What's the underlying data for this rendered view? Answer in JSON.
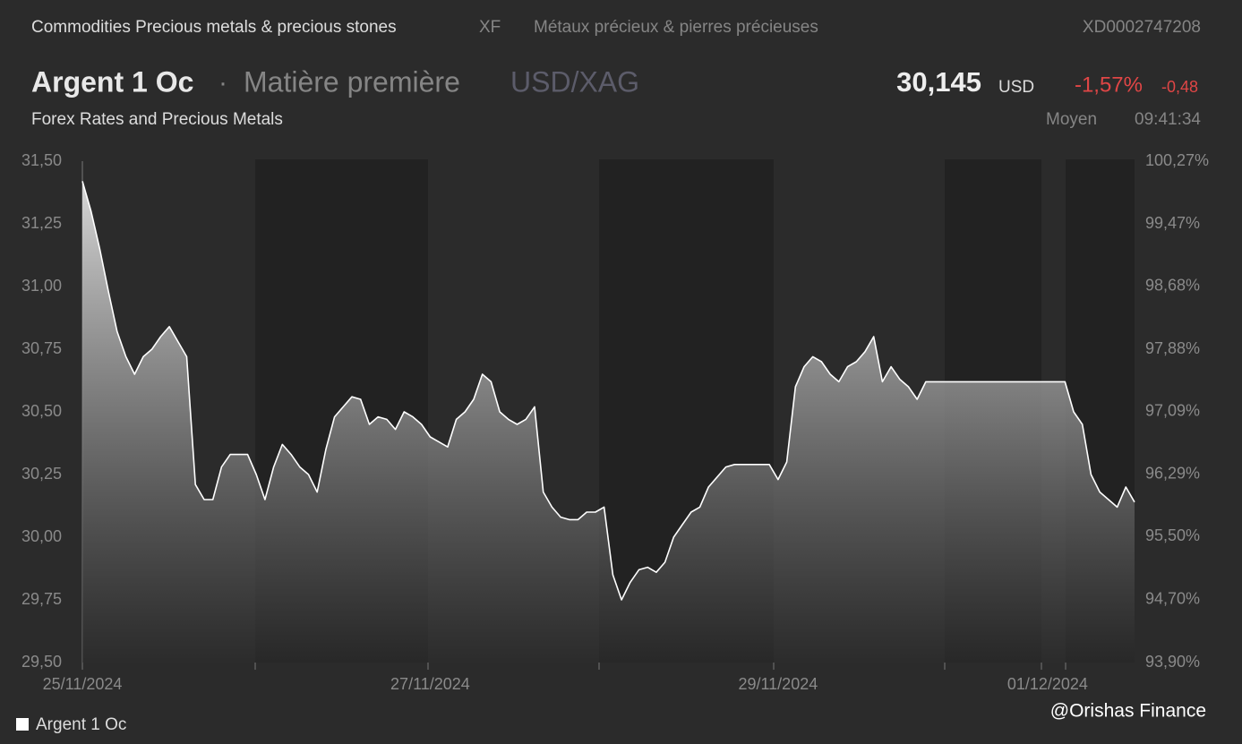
{
  "header": {
    "category": "Commodities Precious metals & precious stones",
    "code": "XF",
    "category_fr": "Métaux précieux & pierres précieuses",
    "isin": "XD0002747208",
    "name": "Argent 1 Oc",
    "separator": "·",
    "kind": "Matière première",
    "pair": "USD/XAG",
    "price": "30,145",
    "currency": "USD",
    "change_pct": "-1,57%",
    "change": "-0,48",
    "market": "Forex Rates and Precious Metals",
    "price_type": "Moyen",
    "time": "09:41:34"
  },
  "watermark": "@Orishas Finance",
  "chart_data": {
    "type": "area",
    "categories": [
      "25/11/2024",
      null,
      null,
      null,
      null,
      null,
      null,
      null,
      null,
      null,
      null,
      null,
      null,
      null,
      null,
      null,
      null,
      null,
      null,
      null,
      null,
      null,
      null,
      null,
      null,
      null,
      null,
      null,
      null,
      null,
      null,
      null,
      null,
      null,
      null,
      null,
      null,
      null,
      null,
      null,
      "27/11/2024",
      null,
      null,
      null,
      null,
      null,
      null,
      null,
      null,
      null,
      null,
      null,
      null,
      null,
      null,
      null,
      null,
      null,
      null,
      null,
      null,
      null,
      null,
      null,
      null,
      null,
      null,
      null,
      null,
      null,
      null,
      null,
      null,
      null,
      null,
      null,
      null,
      null,
      null,
      null,
      "29/11/2024",
      null,
      null,
      null,
      null,
      null,
      null,
      null,
      null,
      null,
      null,
      null,
      null,
      null,
      null,
      null,
      null,
      null,
      null,
      null,
      null,
      null,
      null,
      null,
      null,
      null,
      null,
      null,
      null,
      null,
      null,
      "01/12/2024",
      null,
      null,
      null,
      null,
      null,
      null,
      null,
      null,
      null,
      null
    ],
    "series": [
      {
        "name": "Argent 1 Oc",
        "color": "#ffffff",
        "values": [
          31.42,
          31.3,
          31.15,
          30.98,
          30.82,
          30.72,
          30.65,
          30.72,
          30.75,
          30.8,
          30.84,
          30.78,
          30.72,
          30.21,
          30.15,
          30.15,
          30.28,
          30.33,
          30.33,
          30.33,
          30.25,
          30.15,
          30.28,
          30.37,
          30.33,
          30.28,
          30.25,
          30.18,
          30.35,
          30.48,
          30.52,
          30.56,
          30.55,
          30.45,
          30.48,
          30.47,
          30.43,
          30.5,
          30.48,
          30.45,
          30.4,
          30.38,
          30.36,
          30.47,
          30.5,
          30.55,
          30.65,
          30.62,
          30.5,
          30.47,
          30.45,
          30.47,
          30.52,
          30.18,
          30.12,
          30.08,
          30.07,
          30.07,
          30.1,
          30.1,
          30.12,
          29.85,
          29.75,
          29.82,
          29.87,
          29.88,
          29.86,
          29.9,
          30.0,
          30.05,
          30.1,
          30.12,
          30.2,
          30.24,
          30.28,
          30.29,
          30.29,
          30.29,
          30.29,
          30.29,
          30.23,
          30.3,
          30.6,
          30.68,
          30.72,
          30.7,
          30.65,
          30.62,
          30.68,
          30.7,
          30.74,
          30.8,
          30.62,
          30.68,
          30.63,
          30.6,
          30.55,
          30.62,
          30.62,
          30.62,
          30.62,
          30.62,
          30.62,
          30.62,
          30.62,
          30.62,
          30.62,
          30.62,
          30.62,
          30.62,
          30.62,
          30.62,
          30.62,
          30.62,
          30.5,
          30.45,
          30.25,
          30.18,
          30.15,
          30.12,
          30.2,
          30.14
        ]
      }
    ],
    "ylim": [
      29.5,
      31.5
    ],
    "yticks": [
      {
        "value": 29.5,
        "label": "29,50"
      },
      {
        "value": 29.75,
        "label": "29,75"
      },
      {
        "value": 30,
        "label": "30,00"
      },
      {
        "value": 30.25,
        "label": "30,25"
      },
      {
        "value": 30.5,
        "label": "30,50"
      },
      {
        "value": 30.75,
        "label": "30,75"
      },
      {
        "value": 31,
        "label": "31,00"
      },
      {
        "value": 31.25,
        "label": "31,25"
      },
      {
        "value": 31.5,
        "label": "31,50"
      }
    ],
    "y2lim": [
      93.9,
      100.27
    ],
    "y2ticks": [
      {
        "value": 93.9,
        "label": "93,90%"
      },
      {
        "value": 94.7,
        "label": "94,70%"
      },
      {
        "value": 95.5,
        "label": "95,50%"
      },
      {
        "value": 96.29,
        "label": "96,29%"
      },
      {
        "value": 97.09,
        "label": "97,09%"
      },
      {
        "value": 97.88,
        "label": "97,88%"
      },
      {
        "value": 98.68,
        "label": "98,68%"
      },
      {
        "value": 99.47,
        "label": "99,47%"
      },
      {
        "value": 100.27,
        "label": "100,27%"
      }
    ]
  }
}
